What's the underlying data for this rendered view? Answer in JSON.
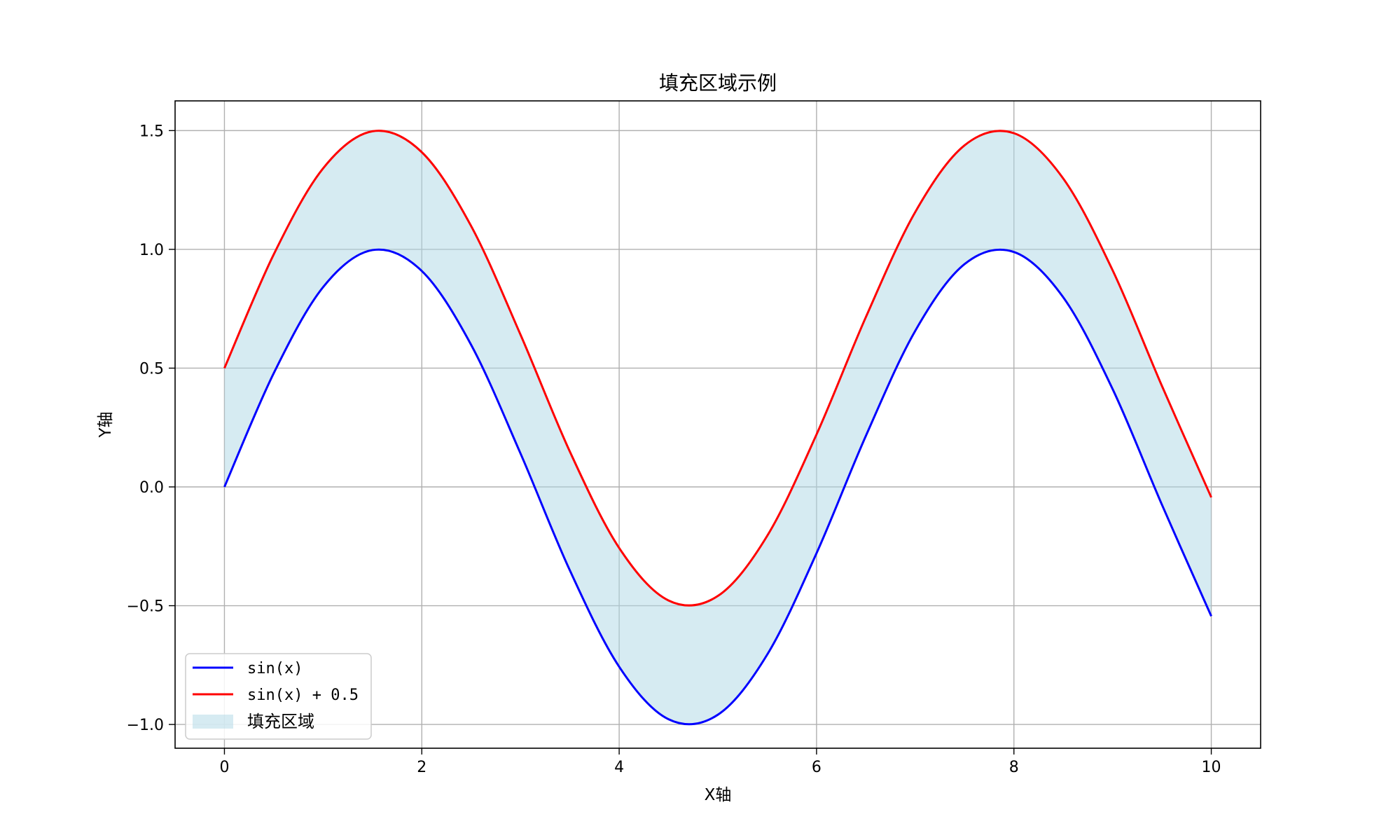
{
  "chart_data": {
    "type": "line",
    "title": "填充区域示例",
    "xlabel": "X轴",
    "ylabel": "Y轴",
    "xlim": [
      -0.5,
      10.5
    ],
    "ylim": [
      -1.1,
      1.625
    ],
    "x_ticks": [
      0,
      2,
      4,
      6,
      8,
      10
    ],
    "x_tick_labels": [
      "0",
      "2",
      "4",
      "6",
      "8",
      "10"
    ],
    "y_ticks": [
      -1.0,
      -0.5,
      0.0,
      0.5,
      1.0,
      1.5
    ],
    "y_tick_labels": [
      "−1.0",
      "−0.5",
      "0.0",
      "0.5",
      "1.0",
      "1.5"
    ],
    "grid": true,
    "legend_position": "lower-left",
    "x": [
      0,
      0.5,
      1,
      1.5,
      2,
      2.5,
      3,
      3.5,
      4,
      4.5,
      5,
      5.5,
      6,
      6.5,
      7,
      7.5,
      8,
      8.5,
      9,
      9.5,
      10
    ],
    "series": [
      {
        "name": "sin(x)",
        "color": "#0000ff",
        "values": [
          0.0,
          0.479,
          0.841,
          0.997,
          0.909,
          0.598,
          0.141,
          -0.351,
          -0.757,
          -0.978,
          -0.959,
          -0.706,
          -0.279,
          0.215,
          0.657,
          0.938,
          0.989,
          0.798,
          0.412,
          -0.075,
          -0.544
        ]
      },
      {
        "name": "sin(x) + 0.5",
        "color": "#ff0000",
        "values": [
          0.5,
          0.979,
          1.341,
          1.497,
          1.409,
          1.098,
          0.641,
          0.149,
          -0.257,
          -0.478,
          -0.459,
          -0.206,
          0.221,
          0.715,
          1.157,
          1.438,
          1.489,
          1.298,
          0.912,
          0.425,
          -0.044
        ]
      }
    ],
    "fill": {
      "name": "填充区域",
      "between": [
        "sin(x)",
        "sin(x) + 0.5"
      ],
      "color": "#add8e6",
      "opacity": 0.5
    }
  }
}
